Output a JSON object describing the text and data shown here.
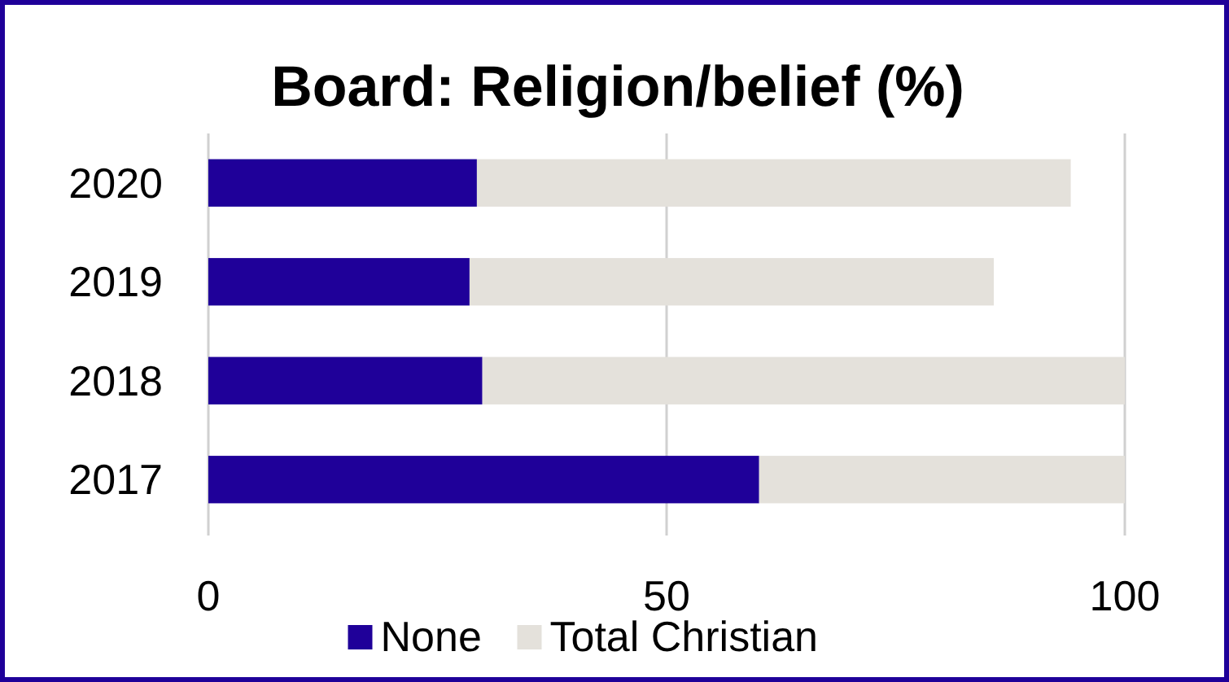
{
  "chart_data": {
    "type": "bar",
    "title": "Board: Religion/belief (%)",
    "orientation": "horizontal",
    "stacked": true,
    "categories": [
      "2020",
      "2019",
      "2018",
      "2017"
    ],
    "series": [
      {
        "name": "None",
        "color": "#1f0099",
        "values": [
          29.3,
          28.5,
          29.9,
          60.1
        ]
      },
      {
        "name": "Total Christian",
        "color": "#e4e1db",
        "values": [
          64.8,
          57.2,
          70.1,
          39.9
        ]
      }
    ],
    "xlim": [
      0,
      100
    ],
    "xticks": [
      0,
      50,
      100
    ],
    "grid": "x",
    "legend": "bottom"
  }
}
